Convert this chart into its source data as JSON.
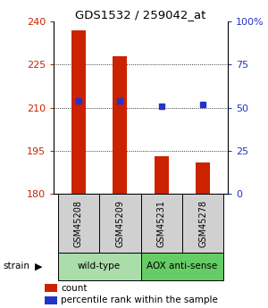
{
  "title": "GDS1532 / 259042_at",
  "samples": [
    "GSM45208",
    "GSM45209",
    "GSM45231",
    "GSM45278"
  ],
  "counts": [
    237,
    228,
    193,
    191
  ],
  "percentile_ranks": [
    54,
    54,
    51,
    52
  ],
  "ylim_left": [
    180,
    240
  ],
  "yticks_left": [
    180,
    195,
    210,
    225,
    240
  ],
  "ylim_right": [
    0,
    100
  ],
  "yticks_right": [
    0,
    25,
    50,
    75,
    100
  ],
  "bar_color": "#cc2200",
  "dot_color": "#2233cc",
  "bar_width": 0.35,
  "left_tick_color": "#cc2200",
  "right_tick_color": "#2233cc",
  "grid_yticks": [
    195,
    210,
    225
  ],
  "groups_info": [
    {
      "start": 0,
      "end": 1,
      "label": "wild-type",
      "color": "#aaddaa"
    },
    {
      "start": 2,
      "end": 3,
      "label": "AOX anti-sense",
      "color": "#66cc66"
    }
  ],
  "legend_count_color": "#cc2200",
  "legend_pct_color": "#2233cc",
  "strain_label": "strain",
  "strain_arrow": "▶"
}
